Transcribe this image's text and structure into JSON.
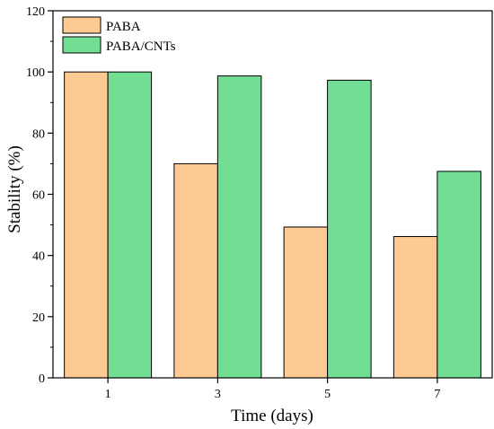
{
  "chart_data": {
    "type": "bar",
    "categories": [
      "1",
      "3",
      "5",
      "7"
    ],
    "series": [
      {
        "name": "PABA",
        "values": [
          100,
          70,
          49.3,
          46.2
        ],
        "color": "#fdca93"
      },
      {
        "name": "PABA/CNTs",
        "values": [
          100,
          98.7,
          97.3,
          67.5
        ],
        "color": "#72de93"
      }
    ],
    "xlabel": "Time (days)",
    "ylabel": "Stability (%)",
    "ylim": [
      0,
      120
    ],
    "yticks": [
      0,
      20,
      40,
      60,
      80,
      100,
      120
    ],
    "grid": false,
    "legend_position": "top-left"
  }
}
